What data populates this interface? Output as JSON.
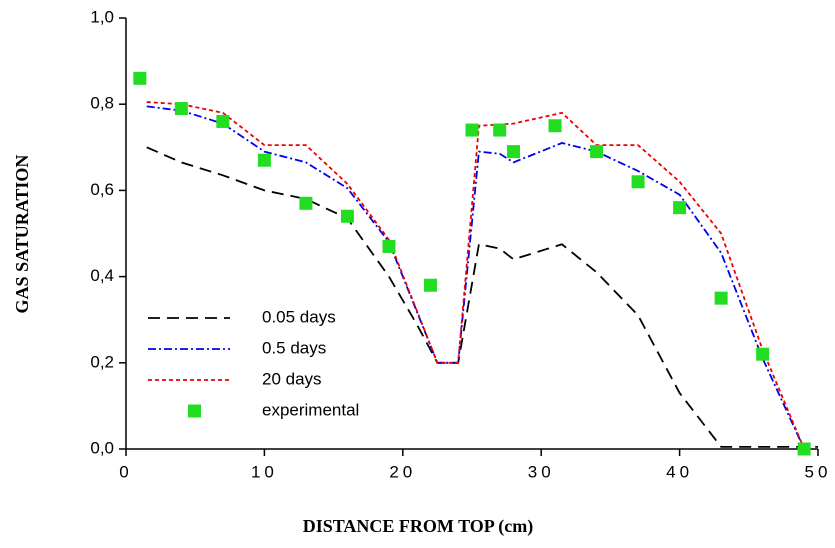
{
  "chart_data": {
    "type": "line",
    "x_label": "DISTANCE FROM TOP (cm)",
    "y_label": "GAS SATURATION",
    "xlim": [
      0,
      50
    ],
    "xticks": [
      0,
      10,
      20,
      30,
      40,
      50
    ],
    "ylim": [
      0,
      1
    ],
    "yticks": [
      {
        "value": 0,
        "label": "0,0"
      },
      {
        "value": 0.2,
        "label": "0,2"
      },
      {
        "value": 0.4,
        "label": "0,4"
      },
      {
        "value": 0.6,
        "label": "0,6"
      },
      {
        "value": 0.8,
        "label": "0,8"
      },
      {
        "value": 1,
        "label": "1,0"
      }
    ],
    "legend": "lower-left",
    "series": [
      {
        "name": "0.05 days",
        "color": "#000000",
        "dash": "dashed",
        "x": [
          1.5,
          4,
          7,
          10,
          13,
          16,
          19,
          21,
          22.5,
          24,
          25.5,
          27,
          28,
          31.5,
          34,
          37,
          40,
          43,
          46,
          50
        ],
        "values": [
          0.7,
          0.665,
          0.635,
          0.6,
          0.58,
          0.535,
          0.4,
          0.29,
          0.2,
          0.2,
          0.475,
          0.465,
          0.44,
          0.475,
          0.41,
          0.31,
          0.13,
          0.005,
          0.005,
          0.005
        ]
      },
      {
        "name": "0.5 days",
        "color": "#0000ee",
        "dash": "dashdot",
        "x": [
          1.5,
          4,
          7,
          10,
          13,
          16,
          19,
          22.5,
          24,
          25.5,
          27,
          28,
          31.5,
          34,
          37,
          40,
          43,
          46,
          49
        ],
        "values": [
          0.795,
          0.785,
          0.755,
          0.69,
          0.665,
          0.605,
          0.48,
          0.2,
          0.2,
          0.69,
          0.685,
          0.665,
          0.71,
          0.69,
          0.645,
          0.59,
          0.455,
          0.21,
          0
        ]
      },
      {
        "name": "20 days",
        "color": "#ee0000",
        "dash": "dotted",
        "x": [
          1.5,
          4,
          7,
          10,
          13,
          16,
          19,
          22.5,
          24,
          25.5,
          28,
          31.5,
          34,
          37,
          40,
          43,
          46,
          49
        ],
        "values": [
          0.805,
          0.8,
          0.78,
          0.705,
          0.705,
          0.615,
          0.485,
          0.2,
          0.2,
          0.75,
          0.755,
          0.78,
          0.705,
          0.705,
          0.62,
          0.5,
          0.23,
          0
        ]
      },
      {
        "name": "experimental",
        "color": "#22dd22",
        "marker": "square",
        "x": [
          1,
          4,
          7,
          10,
          13,
          16,
          19,
          22,
          25,
          27,
          28,
          31,
          34,
          37,
          40,
          43,
          46,
          49
        ],
        "values": [
          0.86,
          0.79,
          0.76,
          0.67,
          0.57,
          0.54,
          0.47,
          0.38,
          0.74,
          0.74,
          0.69,
          0.75,
          0.69,
          0.62,
          0.56,
          0.35,
          0.22,
          0
        ]
      }
    ]
  }
}
